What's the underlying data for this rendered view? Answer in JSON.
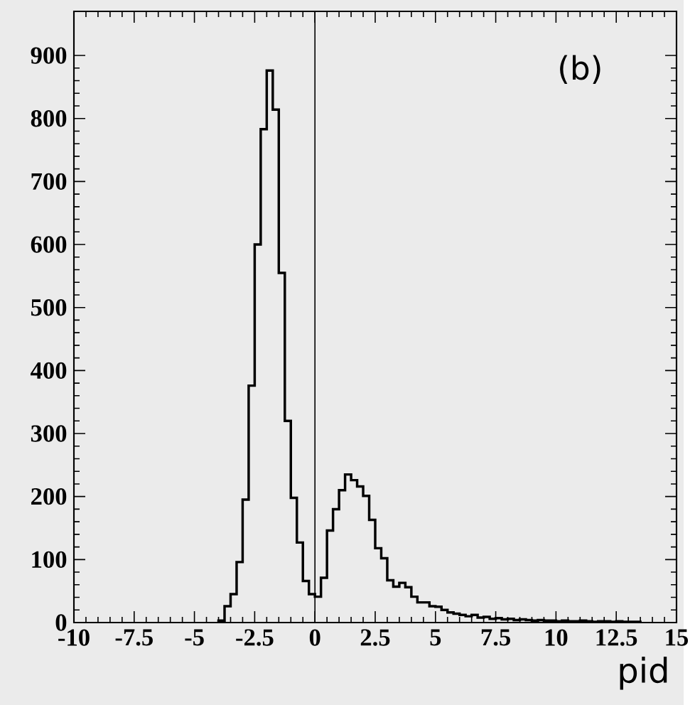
{
  "chart_data": {
    "type": "histogram",
    "xlabel": "pid",
    "annotations": [
      "(b)"
    ],
    "bins": [
      -4,
      -3.75,
      -3.5,
      -3.25,
      -3,
      -2.75,
      -2.5,
      -2.25,
      -2,
      -1.75,
      -1.5,
      -1.25,
      -1,
      -0.75,
      -0.5,
      -0.25,
      0,
      0.25,
      0.5,
      0.75,
      1,
      1.25,
      1.5,
      1.75,
      2,
      2.25,
      2.5,
      2.75,
      3,
      3.25,
      3.5,
      3.75,
      4,
      4.25,
      4.5,
      4.75,
      5,
      5.25,
      5.5,
      5.75,
      6,
      6.25,
      6.5,
      6.75,
      7,
      7.25,
      7.5,
      7.75,
      8,
      8.25,
      8.5,
      8.75,
      9,
      9.25,
      9.5,
      9.75,
      10,
      10.25,
      10.5,
      10.75,
      11,
      11.25,
      11.5,
      11.75,
      12,
      12.25,
      12.5,
      12.75,
      13,
      13.25,
      13.5
    ],
    "values": [
      3,
      26,
      45,
      96,
      195,
      376,
      600,
      783,
      876,
      814,
      555,
      320,
      198,
      127,
      66,
      45,
      41,
      71,
      146,
      180,
      210,
      235,
      226,
      216,
      201,
      163,
      118,
      102,
      67,
      57,
      63,
      56,
      41,
      32,
      32,
      26,
      25,
      20,
      16,
      14,
      12,
      10,
      12,
      8,
      9,
      6,
      7,
      5,
      6,
      4,
      5,
      4,
      3,
      4,
      3,
      3,
      2,
      3,
      2,
      2,
      3,
      2,
      1,
      2,
      2,
      1,
      2,
      1,
      1,
      1
    ],
    "color": "#000000",
    "xlim": [
      -10,
      15
    ],
    "xticks": [
      -10,
      -7.5,
      -5,
      -2.5,
      0,
      2.5,
      5,
      7.5,
      10,
      12.5,
      15
    ],
    "ylim": [
      0,
      970
    ],
    "yticks": [
      0,
      100,
      200,
      300,
      400,
      500,
      600,
      700,
      800,
      900
    ],
    "ref_lines": [
      {
        "axis": "x",
        "value": 0
      }
    ]
  }
}
